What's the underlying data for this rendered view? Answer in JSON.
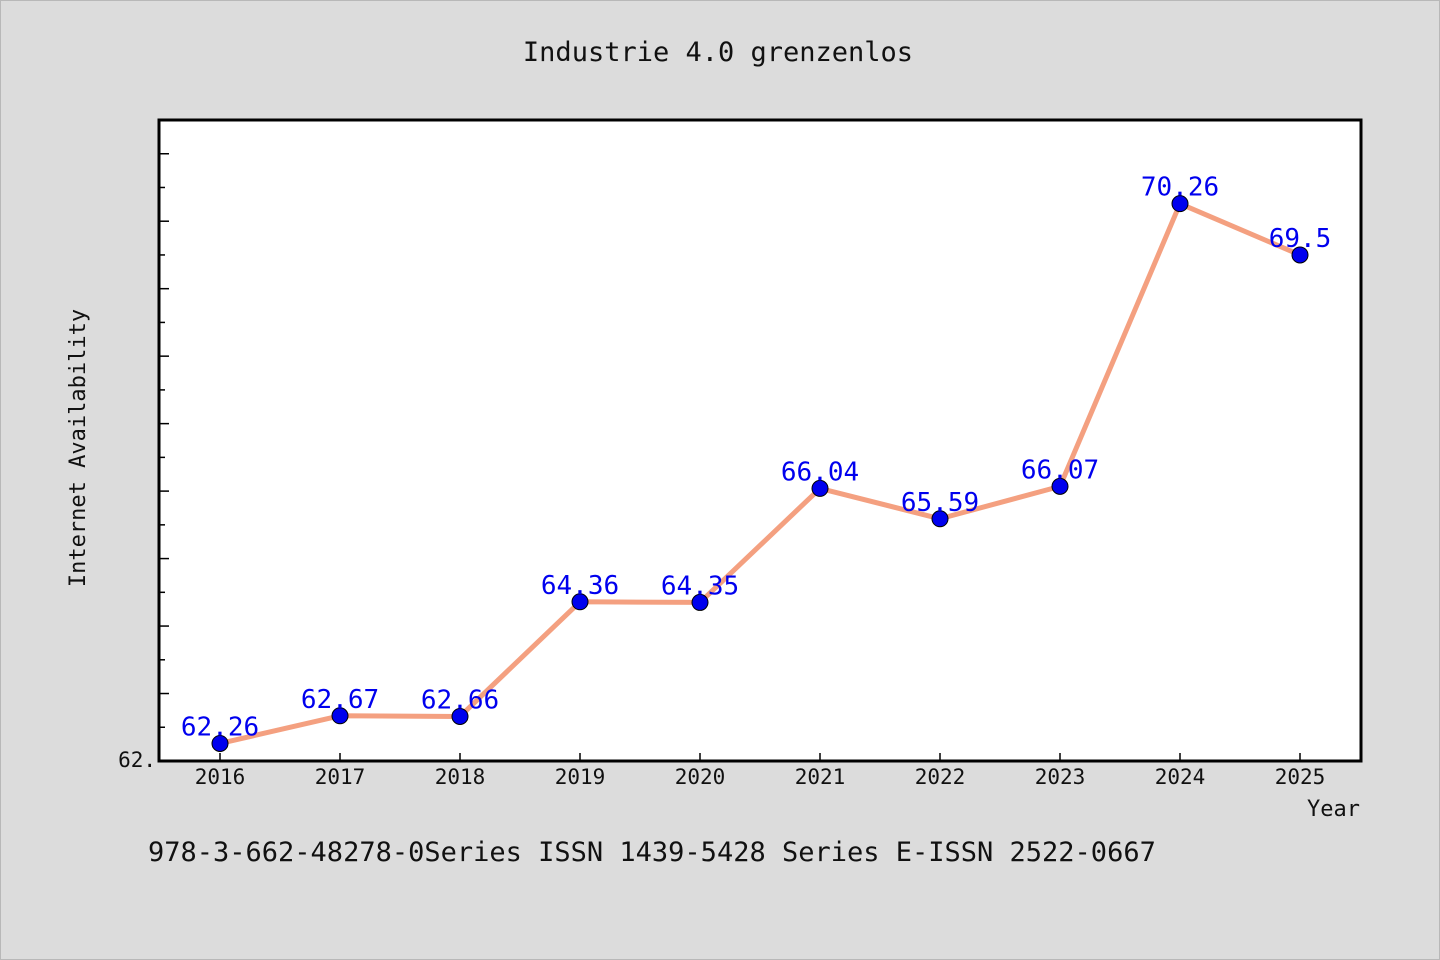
{
  "chart_data": {
    "type": "line",
    "title": "Industrie 4.0 grenzenlos",
    "xlabel": "Year",
    "ylabel": "Internet Availability",
    "x": [
      "2016",
      "2017",
      "2018",
      "2019",
      "2020",
      "2021",
      "2022",
      "2023",
      "2024",
      "2025"
    ],
    "series": [
      {
        "values": [
          62.26,
          62.67,
          62.66,
          64.36,
          64.35,
          66.04,
          65.59,
          66.07,
          70.26,
          69.5
        ],
        "labels": [
          "62.26",
          "62.67",
          "62.66",
          "64.36",
          "64.35",
          "66.04",
          "65.59",
          "66.07",
          "70.26",
          "69.5"
        ]
      }
    ],
    "ylim": [
      62.0,
      71.5
    ],
    "y_tick_labels": [
      "62."
    ],
    "grid": false,
    "line_color": "#f4a080",
    "marker_color": "#0000ee"
  },
  "footer": {
    "text": "978-3-662-48278-0Series ISSN 1439-5428 Series E-ISSN 2522-0667"
  }
}
